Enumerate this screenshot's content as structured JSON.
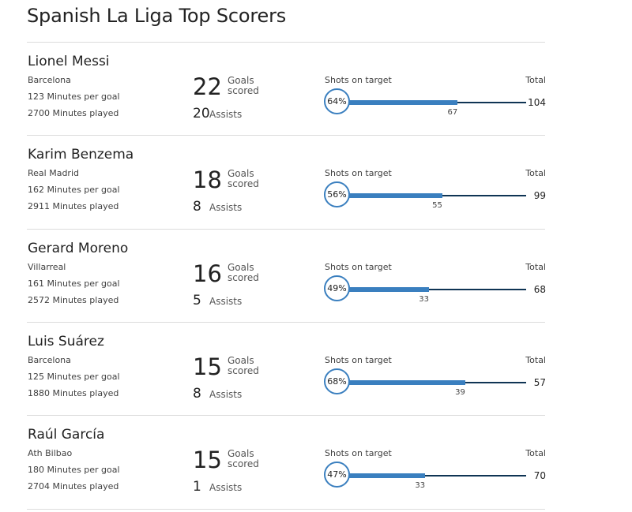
{
  "page": {
    "title": "Spanish La Liga Top Scorers"
  },
  "labels": {
    "goals": "Goals scored",
    "assists": "Assists",
    "shots_on_target": "Shots on target",
    "total": "Total"
  },
  "colors": {
    "accent": "#3a7fbf",
    "dark_line": "#0f3454",
    "divider": "#dcdcdc"
  },
  "players": [
    {
      "name": "Lionel Messi",
      "team": "Barcelona",
      "minutes_per_goal": "123 Minutes per goal",
      "minutes_played": "2700 Minutes played",
      "goals": "22",
      "assists": "20",
      "sot_percent": "64%",
      "sot_percent_value": 64,
      "shots_on_target": "67",
      "total_shots": "104",
      "total_shots_value": 104
    },
    {
      "name": "Karim Benzema",
      "team": "Real Madrid",
      "minutes_per_goal": "162 Minutes per goal",
      "minutes_played": "2911 Minutes played",
      "goals": "18",
      "assists": "8",
      "sot_percent": "56%",
      "sot_percent_value": 56,
      "shots_on_target": "55",
      "total_shots": "99",
      "total_shots_value": 99
    },
    {
      "name": "Gerard Moreno",
      "team": "Villarreal",
      "minutes_per_goal": "161 Minutes per goal",
      "minutes_played": "2572 Minutes played",
      "goals": "16",
      "assists": "5",
      "sot_percent": "49%",
      "sot_percent_value": 49,
      "shots_on_target": "33",
      "total_shots": "68",
      "total_shots_value": 68
    },
    {
      "name": "Luis Suárez",
      "team": "Barcelona",
      "minutes_per_goal": "125 Minutes per goal",
      "minutes_played": "1880 Minutes played",
      "goals": "15",
      "assists": "8",
      "sot_percent": "68%",
      "sot_percent_value": 68,
      "shots_on_target": "39",
      "total_shots": "57",
      "total_shots_value": 57
    },
    {
      "name": "Raúl García",
      "team": "Ath Bilbao",
      "minutes_per_goal": "180 Minutes per goal",
      "minutes_played": "2704 Minutes played",
      "goals": "15",
      "assists": "1",
      "sot_percent": "47%",
      "sot_percent_value": 47,
      "shots_on_target": "33",
      "total_shots": "70",
      "total_shots_value": 70
    }
  ]
}
